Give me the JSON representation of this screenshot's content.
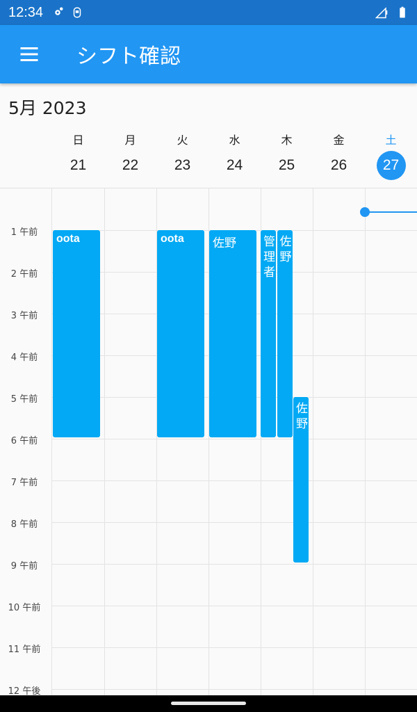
{
  "status_bar": {
    "time": "12:34"
  },
  "app_bar": {
    "title": "シフト確認"
  },
  "calendar": {
    "month_label": "5月 2023",
    "days": [
      {
        "dow": "日",
        "dom": "21"
      },
      {
        "dow": "月",
        "dom": "22"
      },
      {
        "dow": "火",
        "dom": "23"
      },
      {
        "dow": "水",
        "dom": "24"
      },
      {
        "dow": "木",
        "dom": "25"
      },
      {
        "dow": "金",
        "dom": "26"
      },
      {
        "dow": "土",
        "dom": "27",
        "today": true
      }
    ],
    "hours": [
      "1 午前",
      "2 午前",
      "3 午前",
      "4 午前",
      "5 午前",
      "6 午前",
      "7 午前",
      "8 午前",
      "9 午前",
      "10 午前",
      "11 午前",
      "12 午後"
    ],
    "events": [
      {
        "title": "oota",
        "day": 0,
        "start": 1,
        "end": 6,
        "style": "bold"
      },
      {
        "title": "oota",
        "day": 2,
        "start": 1,
        "end": 6,
        "style": "bold"
      },
      {
        "title": "佐野",
        "day": 3,
        "start": 1,
        "end": 6,
        "style": "norm"
      },
      {
        "title": "管理者",
        "day": 4,
        "start": 1,
        "end": 6,
        "style": "vert",
        "sub": 0
      },
      {
        "title": "佐野",
        "day": 4,
        "start": 1,
        "end": 6,
        "style": "vert",
        "sub": 1
      },
      {
        "title": "佐野",
        "day": 4,
        "start": 5,
        "end": 9,
        "style": "vert",
        "sub": 2
      }
    ],
    "accent_color": "#2196f3",
    "event_color": "#03a9f4"
  }
}
